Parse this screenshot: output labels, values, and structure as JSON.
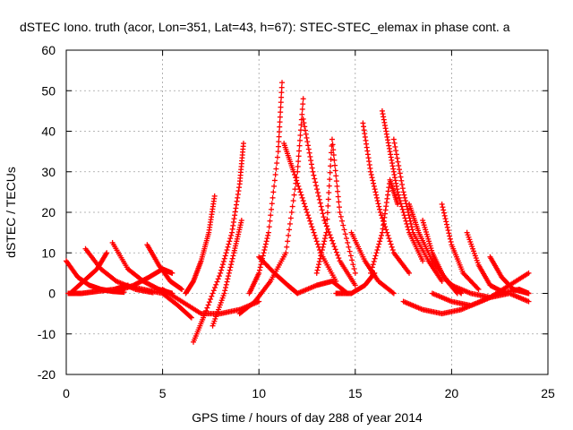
{
  "chart_data": {
    "type": "scatter",
    "title": "dSTEC Iono. truth (acor, Lon=351, Lat=43, h=67): STEC-STEC_elemax in phase cont. a",
    "xlabel": "GPS time / hours of day 288 of year 2014",
    "ylabel": "dSTEC  / TECUs",
    "xlim": [
      0,
      25
    ],
    "ylim": [
      -20,
      60
    ],
    "xticks": [
      "0",
      "5",
      "10",
      "15",
      "20",
      "25"
    ],
    "yticks": [
      "-20",
      "-10",
      "0",
      "10",
      "20",
      "30",
      "40",
      "50",
      "60"
    ],
    "grid": true,
    "marker": "plus",
    "color": "#ff0000",
    "series": [
      {
        "x": [
          0.0,
          0.6,
          1.2,
          1.8,
          2.4,
          3.0
        ],
        "y": [
          8,
          4,
          2,
          1,
          0.5,
          0.3
        ]
      },
      {
        "x": [
          0.1,
          0.8,
          1.6,
          2.5,
          3.2
        ],
        "y": [
          0,
          0,
          0.5,
          1,
          2
        ]
      },
      {
        "x": [
          1.0,
          1.8,
          2.6,
          3.6,
          4.5
        ],
        "y": [
          11,
          6,
          3,
          1,
          0.2
        ]
      },
      {
        "x": [
          0.2,
          0.9,
          1.6,
          2.1
        ],
        "y": [
          0,
          3,
          6,
          10
        ]
      },
      {
        "x": [
          2.4,
          3.2,
          4.0,
          4.8,
          5.5
        ],
        "y": [
          12.5,
          6,
          3,
          1,
          0
        ]
      },
      {
        "x": [
          4.2,
          4.8,
          5.4,
          6.0
        ],
        "y": [
          12,
          7,
          3,
          1
        ]
      },
      {
        "x": [
          2.6,
          3.5,
          4.3,
          5.0,
          5.5
        ],
        "y": [
          0.5,
          2,
          4,
          6,
          5
        ]
      },
      {
        "x": [
          3.0,
          4.0,
          5.0,
          5.8,
          6.5
        ],
        "y": [
          2,
          1,
          0,
          -3,
          -6
        ]
      },
      {
        "x": [
          5.0,
          6.0,
          7.0,
          8.0,
          9.0,
          10.0
        ],
        "y": [
          1,
          -2,
          -5,
          -5,
          -4,
          -2
        ]
      },
      {
        "x": [
          6.2,
          6.6,
          7.0,
          7.4,
          7.7
        ],
        "y": [
          0,
          3,
          8,
          15,
          24
        ]
      },
      {
        "x": [
          6.6,
          7.2,
          8.0,
          8.6,
          9.0,
          9.2
        ],
        "y": [
          -12,
          -5,
          5,
          15,
          27,
          37
        ]
      },
      {
        "x": [
          7.6,
          8.2,
          8.7,
          9.1
        ],
        "y": [
          -8,
          0,
          10,
          18
        ]
      },
      {
        "x": [
          9.5,
          10.0,
          10.5,
          11.0,
          11.2
        ],
        "y": [
          0,
          5,
          15,
          35,
          52
        ]
      },
      {
        "x": [
          9.0,
          9.8,
          10.6,
          11.4,
          12.0,
          12.3
        ],
        "y": [
          -5,
          -2,
          3,
          10,
          30,
          48
        ]
      },
      {
        "x": [
          11.3,
          11.8,
          12.5,
          13.2,
          14.0
        ],
        "y": [
          37,
          30,
          20,
          10,
          3
        ]
      },
      {
        "x": [
          12.3,
          12.8,
          13.4,
          14.2,
          15.0
        ],
        "y": [
          43,
          30,
          18,
          8,
          2
        ]
      },
      {
        "x": [
          10.0,
          10.8,
          11.5,
          12.0
        ],
        "y": [
          9,
          5,
          2,
          0
        ]
      },
      {
        "x": [
          12.0,
          13.0,
          13.8,
          14.6
        ],
        "y": [
          0,
          2,
          3,
          0
        ]
      },
      {
        "x": [
          13.0,
          13.5,
          13.8,
          14.2,
          15.0
        ],
        "y": [
          5,
          15,
          38,
          20,
          5
        ]
      },
      {
        "x": [
          14.0,
          14.8,
          15.5,
          16.0
        ],
        "y": [
          0,
          0,
          2,
          5
        ]
      },
      {
        "x": [
          14.8,
          15.5,
          16.2,
          17.0
        ],
        "y": [
          15,
          8,
          3,
          0
        ]
      },
      {
        "x": [
          15.4,
          15.8,
          16.3,
          17.0,
          17.8
        ],
        "y": [
          42,
          30,
          20,
          10,
          5
        ]
      },
      {
        "x": [
          16.4,
          16.8,
          17.2,
          17.8,
          18.5
        ],
        "y": [
          45,
          35,
          25,
          15,
          8
        ]
      },
      {
        "x": [
          15.8,
          16.4,
          16.8,
          17.2
        ],
        "y": [
          5,
          15,
          28,
          22
        ]
      },
      {
        "x": [
          17.0,
          17.5,
          18.0,
          18.8,
          19.5
        ],
        "y": [
          38,
          25,
          15,
          8,
          3
        ]
      },
      {
        "x": [
          17.8,
          18.3,
          19.0,
          19.8,
          20.5
        ],
        "y": [
          22,
          15,
          8,
          3,
          0
        ]
      },
      {
        "x": [
          18.5,
          19.0,
          19.6,
          20.3
        ],
        "y": [
          18,
          10,
          4,
          0
        ]
      },
      {
        "x": [
          19.5,
          20.0,
          20.6,
          21.4
        ],
        "y": [
          22,
          12,
          5,
          1
        ]
      },
      {
        "x": [
          20.8,
          21.4,
          22.0,
          22.8
        ],
        "y": [
          15,
          7,
          2,
          0
        ]
      },
      {
        "x": [
          22.0,
          22.6,
          23.2,
          24.0
        ],
        "y": [
          9,
          4,
          1,
          0
        ]
      },
      {
        "x": [
          17.5,
          18.5,
          19.5,
          20.5,
          21.5,
          22.5,
          23.5,
          24.0
        ],
        "y": [
          -2,
          -4,
          -5,
          -4,
          -2,
          0,
          1,
          0
        ]
      },
      {
        "x": [
          19.0,
          20.0,
          21.0,
          22.0,
          23.0,
          24.0
        ],
        "y": [
          0,
          -2,
          -3,
          -1,
          2,
          5
        ]
      },
      {
        "x": [
          20.0,
          21.0,
          22.0,
          23.0,
          24.0
        ],
        "y": [
          2,
          0,
          -1,
          0,
          -2
        ]
      }
    ]
  }
}
